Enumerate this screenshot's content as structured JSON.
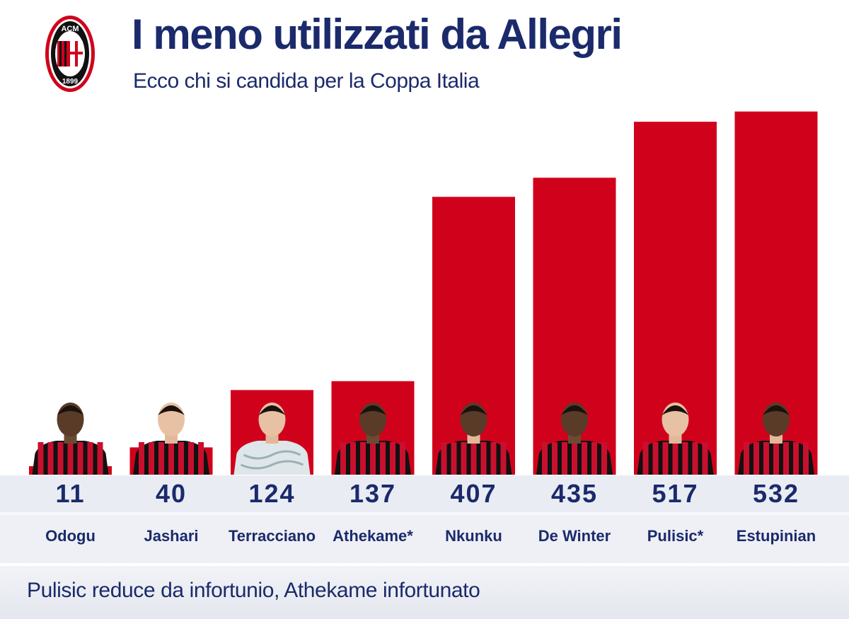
{
  "header": {
    "title": "I meno utilizzati da Allegri",
    "subtitle": "Ecco chi si candida per la Coppa Italia",
    "logo_text": "ACM 1899"
  },
  "footer": {
    "note": "Pulisic reduce da infortunio, Athekame infortunato"
  },
  "colors": {
    "bar": "#d0021b",
    "text": "#1b2a6b",
    "kit_red": "#c8102e",
    "kit_black": "#111111"
  },
  "chart_data": {
    "type": "bar",
    "categories": [
      "Odogu",
      "Jashari",
      "Terracciano",
      "Athekame*",
      "Nkunku",
      "De Winter",
      "Pulisic*",
      "Estupinian"
    ],
    "values": [
      11,
      40,
      124,
      137,
      407,
      435,
      517,
      532
    ],
    "value_labels": [
      "11",
      "40",
      "124",
      "137",
      "407",
      "435",
      "517",
      "532"
    ],
    "icons": [
      "player-photo-odogu",
      "player-photo-jashari",
      "player-photo-terracciano",
      "player-photo-athekame",
      "player-photo-nkunku",
      "player-photo-de-winter",
      "player-photo-pulisic",
      "player-photo-estupinian"
    ],
    "title": "I meno utilizzati da Allegri",
    "subtitle": "Ecco chi si candida per la Coppa Italia",
    "xlabel": "",
    "ylabel": "",
    "ylim": [
      0,
      540
    ],
    "grid": false,
    "legend": "none"
  }
}
